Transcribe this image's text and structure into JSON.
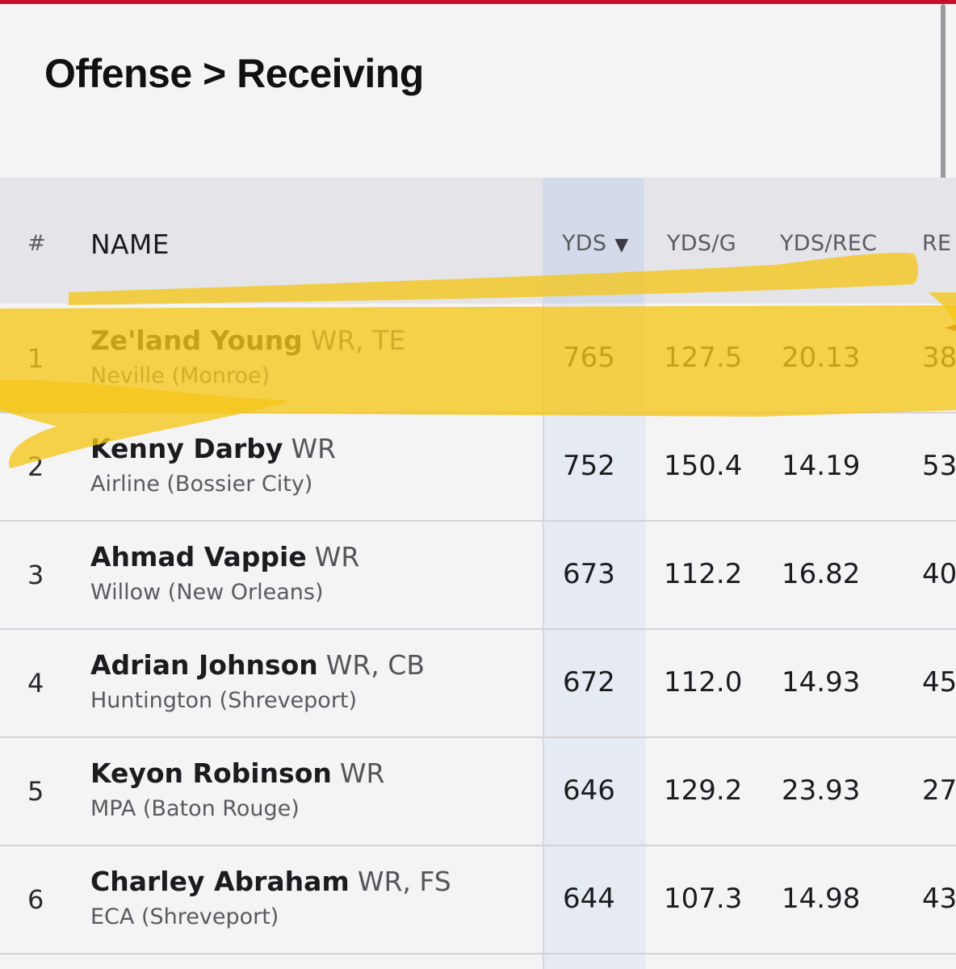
{
  "page_title": "Offense > Receiving",
  "colors": {
    "accent": "#c8102e",
    "highlight": "#f5c518"
  },
  "columns": {
    "rank": "#",
    "name": "NAME",
    "yds": "YDS",
    "yds_per_game": "YDS/G",
    "yds_per_rec": "YDS/REC",
    "rec": "RE"
  },
  "sort": {
    "column": "YDS",
    "direction": "descending",
    "icon": "sort-down-triangle"
  },
  "rows": [
    {
      "rank": "1",
      "name": "Ze'land Young",
      "pos": "WR, TE",
      "school": "Neville (Monroe)",
      "yds": "765",
      "yds_g": "127.5",
      "yds_rec": "20.13",
      "rec": "38"
    },
    {
      "rank": "2",
      "name": "Kenny Darby",
      "pos": "WR",
      "school": "Airline (Bossier City)",
      "yds": "752",
      "yds_g": "150.4",
      "yds_rec": "14.19",
      "rec": "53"
    },
    {
      "rank": "3",
      "name": "Ahmad Vappie",
      "pos": "WR",
      "school": "Willow (New Orleans)",
      "yds": "673",
      "yds_g": "112.2",
      "yds_rec": "16.82",
      "rec": "40"
    },
    {
      "rank": "4",
      "name": "Adrian Johnson",
      "pos": "WR, CB",
      "school": "Huntington (Shreveport)",
      "yds": "672",
      "yds_g": "112.0",
      "yds_rec": "14.93",
      "rec": "45"
    },
    {
      "rank": "5",
      "name": "Keyon Robinson",
      "pos": "WR",
      "school": "MPA (Baton Rouge)",
      "yds": "646",
      "yds_g": "129.2",
      "yds_rec": "23.93",
      "rec": "27"
    },
    {
      "rank": "6",
      "name": "Charley Abraham",
      "pos": "WR, FS",
      "school": "ECA (Shreveport)",
      "yds": "644",
      "yds_g": "107.3",
      "yds_rec": "14.98",
      "rec": "43"
    }
  ]
}
